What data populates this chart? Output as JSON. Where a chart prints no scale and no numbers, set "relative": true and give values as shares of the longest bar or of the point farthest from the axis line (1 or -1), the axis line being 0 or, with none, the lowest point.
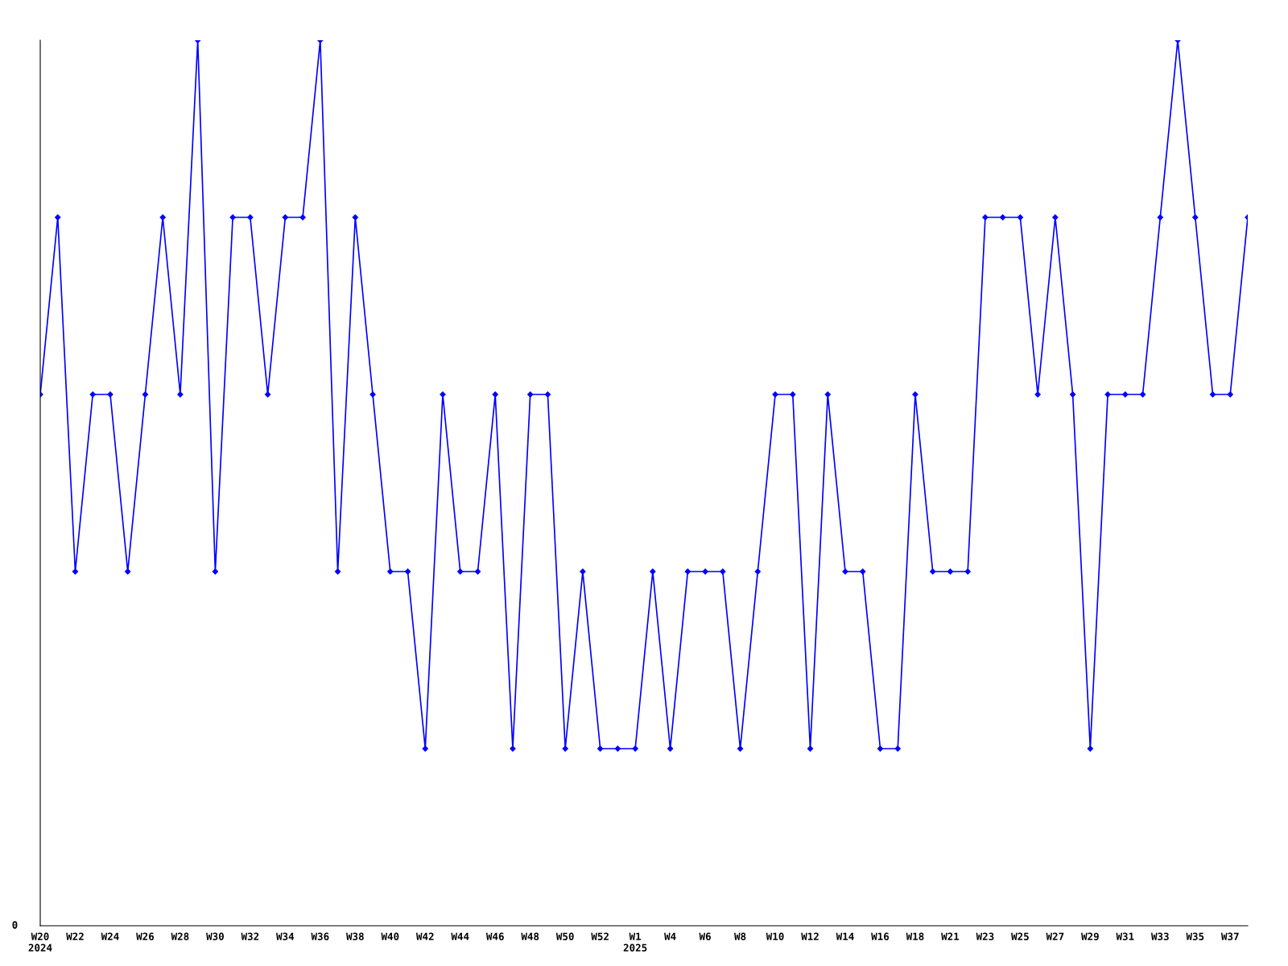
{
  "chart_data": {
    "type": "line",
    "relative": true,
    "marker": "diamond",
    "line_style": "solid",
    "grid": false,
    "legend": false,
    "categories": [
      "W20\n2024",
      null,
      "W22",
      null,
      "W24",
      null,
      "W26",
      null,
      "W28",
      null,
      "W30",
      null,
      "W32",
      null,
      "W34",
      null,
      "W36",
      null,
      "W38",
      null,
      "W40",
      null,
      "W42",
      null,
      "W44",
      null,
      "W46",
      null,
      "W48",
      null,
      "W50",
      null,
      "W52",
      null,
      "W1\n2025",
      null,
      "W4",
      null,
      "W6",
      null,
      "W8",
      null,
      "W10",
      null,
      "W12",
      null,
      "W14",
      null,
      "W16",
      null,
      "W18",
      null,
      "W21",
      null,
      "W23",
      null,
      "W25",
      null,
      "W27",
      null,
      "W29",
      null,
      "W31",
      null,
      "W33",
      null,
      "W35",
      null,
      "W37",
      null
    ],
    "series": [
      {
        "color": "#0000ff",
        "values": [
          0.6,
          0.8,
          0.4,
          0.6,
          0.6,
          0.4,
          0.6,
          0.8,
          0.6,
          1.0,
          0.4,
          0.8,
          0.8,
          0.6,
          0.8,
          0.8,
          1.0,
          0.4,
          0.8,
          0.6,
          0.4,
          0.4,
          0.2,
          0.6,
          0.4,
          0.4,
          0.6,
          0.2,
          0.6,
          0.6,
          0.2,
          0.4,
          0.2,
          0.2,
          0.2,
          0.4,
          0.2,
          0.4,
          0.4,
          0.4,
          0.2,
          0.4,
          0.6,
          0.6,
          0.2,
          0.6,
          0.4,
          0.4,
          0.2,
          0.2,
          0.6,
          0.4,
          0.4,
          0.4,
          0.8,
          0.8,
          0.8,
          0.6,
          0.8,
          0.6,
          0.2,
          0.6,
          0.6,
          0.6,
          0.8,
          1.0,
          0.8,
          0.6,
          0.6,
          0.8
        ]
      }
    ],
    "annotations": [
      "0"
    ]
  }
}
